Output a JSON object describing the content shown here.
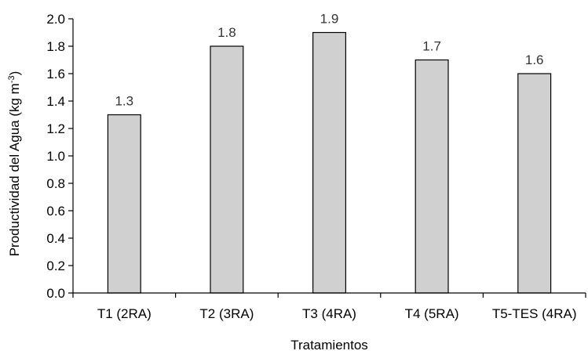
{
  "chart_data": {
    "type": "bar",
    "categories": [
      "T1 (2RA)",
      "T2 (3RA)",
      "T3 (4RA)",
      "T4 (5RA)",
      "T5-TES (4RA)"
    ],
    "values": [
      1.3,
      1.8,
      1.9,
      1.7,
      1.6
    ],
    "data_labels": [
      "1.3",
      "1.8",
      "1.9",
      "1.7",
      "1.6"
    ],
    "xlabel": "Tratamientos",
    "ylabel_main": "Productividad del Agua (kg m",
    "ylabel_sup": "-3",
    "ylabel_close": ")",
    "ylim": [
      0,
      2.0
    ],
    "yticks": [
      "0.0",
      "0.2",
      "0.4",
      "0.6",
      "0.8",
      "1.0",
      "1.2",
      "1.4",
      "1.6",
      "1.8",
      "2.0"
    ],
    "bar_color": "#d0d0d0",
    "grid": false,
    "legend": "none"
  }
}
